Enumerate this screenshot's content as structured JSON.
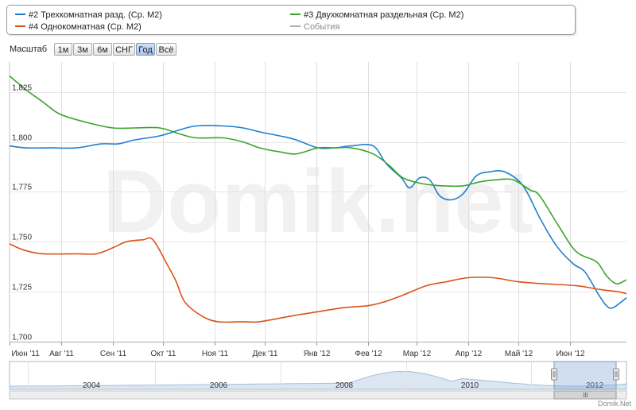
{
  "legend": [
    {
      "label": "#2 Трехкомнатная разд. (Ср. М2)",
      "color": "#1f7fce"
    },
    {
      "label": "#3 Двухкомнатная раздельная (Ср. М2)",
      "color": "#3aa52a"
    },
    {
      "label": "#4 Однокомнатная (Ср. М2)",
      "color": "#d9541a"
    },
    {
      "label": "События",
      "color": "#b0b0b0"
    }
  ],
  "zoom": {
    "label": "Масштаб",
    "buttons": [
      "1м",
      "3м",
      "6м",
      "СНГ",
      "Год",
      "Всё"
    ],
    "active": "Год"
  },
  "chart_data": {
    "type": "line",
    "x_ticks": [
      "Июн '11",
      "Авг '11",
      "Сен '11",
      "Окт '11",
      "Ноя '11",
      "Дек '11",
      "Янв '12",
      "Фев '12",
      "Мар '12",
      "Апр '12",
      "Май '12",
      "Июн '12"
    ],
    "x_tick_days": [
      0,
      31,
      62,
      92,
      123,
      153,
      184,
      215,
      244,
      275,
      305,
      336
    ],
    "x_range_days": [
      0,
      370
    ],
    "y_ticks": [
      "1,700",
      "1,725",
      "1,750",
      "1,775",
      "1,800",
      "1,825"
    ],
    "ylim": [
      1700,
      1840
    ],
    "series": [
      {
        "name": "#2 Трехкомнатная разд. (Ср. М2)",
        "color": "#1f7fce",
        "points": [
          [
            0,
            1798
          ],
          [
            10,
            1797
          ],
          [
            25,
            1797
          ],
          [
            40,
            1797
          ],
          [
            55,
            1799
          ],
          [
            65,
            1799
          ],
          [
            75,
            1801
          ],
          [
            90,
            1803
          ],
          [
            102,
            1806
          ],
          [
            112,
            1808
          ],
          [
            128,
            1808
          ],
          [
            140,
            1807
          ],
          [
            150,
            1805
          ],
          [
            162,
            1803
          ],
          [
            172,
            1801
          ],
          [
            185,
            1797
          ],
          [
            195,
            1797
          ],
          [
            205,
            1798
          ],
          [
            218,
            1798
          ],
          [
            226,
            1789
          ],
          [
            235,
            1782
          ],
          [
            240,
            1777
          ],
          [
            246,
            1782
          ],
          [
            252,
            1781
          ],
          [
            258,
            1773
          ],
          [
            265,
            1771
          ],
          [
            272,
            1774
          ],
          [
            280,
            1783
          ],
          [
            288,
            1785
          ],
          [
            297,
            1785
          ],
          [
            308,
            1778
          ],
          [
            318,
            1762
          ],
          [
            328,
            1748
          ],
          [
            338,
            1739
          ],
          [
            345,
            1735
          ],
          [
            353,
            1724
          ],
          [
            358,
            1718
          ],
          [
            362,
            1717
          ],
          [
            370,
            1722
          ]
        ]
      },
      {
        "name": "#3 Двухкомнатная раздельная (Ср. М2)",
        "color": "#3aa52a",
        "points": [
          [
            0,
            1833
          ],
          [
            10,
            1826
          ],
          [
            20,
            1820
          ],
          [
            30,
            1814
          ],
          [
            45,
            1810
          ],
          [
            62,
            1807
          ],
          [
            75,
            1807
          ],
          [
            90,
            1807
          ],
          [
            102,
            1804
          ],
          [
            112,
            1802
          ],
          [
            128,
            1802
          ],
          [
            140,
            1800
          ],
          [
            150,
            1797
          ],
          [
            162,
            1795
          ],
          [
            172,
            1794
          ],
          [
            185,
            1797
          ],
          [
            195,
            1797
          ],
          [
            205,
            1797
          ],
          [
            218,
            1794
          ],
          [
            228,
            1788
          ],
          [
            236,
            1782
          ],
          [
            248,
            1779
          ],
          [
            260,
            1778
          ],
          [
            272,
            1778
          ],
          [
            282,
            1780
          ],
          [
            292,
            1781
          ],
          [
            302,
            1781
          ],
          [
            312,
            1776
          ],
          [
            318,
            1773
          ],
          [
            330,
            1757
          ],
          [
            340,
            1745
          ],
          [
            352,
            1740
          ],
          [
            358,
            1733
          ],
          [
            364,
            1729
          ],
          [
            370,
            1731
          ]
        ]
      },
      {
        "name": "#4 Однокомнатная (Ср. М2)",
        "color": "#d9541a",
        "points": [
          [
            0,
            1749
          ],
          [
            8,
            1746
          ],
          [
            20,
            1744
          ],
          [
            40,
            1744
          ],
          [
            52,
            1744
          ],
          [
            62,
            1747
          ],
          [
            70,
            1750
          ],
          [
            80,
            1751
          ],
          [
            86,
            1751
          ],
          [
            95,
            1738
          ],
          [
            100,
            1730
          ],
          [
            105,
            1720
          ],
          [
            115,
            1713
          ],
          [
            125,
            1710
          ],
          [
            140,
            1710
          ],
          [
            150,
            1710
          ],
          [
            170,
            1713
          ],
          [
            185,
            1715
          ],
          [
            200,
            1717
          ],
          [
            215,
            1718
          ],
          [
            225,
            1720
          ],
          [
            235,
            1723
          ],
          [
            250,
            1728
          ],
          [
            262,
            1730
          ],
          [
            275,
            1732
          ],
          [
            290,
            1732
          ],
          [
            305,
            1730
          ],
          [
            320,
            1729
          ],
          [
            340,
            1728
          ],
          [
            355,
            1726
          ],
          [
            365,
            1725
          ],
          [
            370,
            1724
          ]
        ]
      }
    ],
    "watermark": "Domik.net",
    "navigator": {
      "years": [
        "2004",
        "2006",
        "2008",
        "2010",
        "2012"
      ]
    },
    "credit": "Domik.Net"
  }
}
